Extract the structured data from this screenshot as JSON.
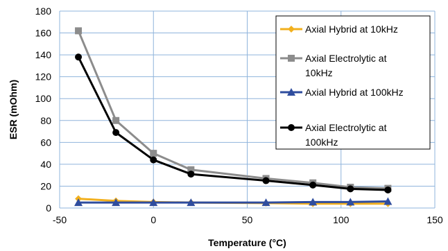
{
  "chart_data": {
    "type": "line",
    "xlabel": "Temperature (°C)",
    "ylabel": "ESR (mOhm)",
    "xlim": [
      -50,
      150
    ],
    "ylim": [
      0,
      180
    ],
    "xticks": [
      -50,
      0,
      50,
      100,
      150
    ],
    "yticks": [
      0,
      20,
      40,
      60,
      80,
      100,
      120,
      140,
      160,
      180
    ],
    "xtick_labels": [
      "-50",
      "0",
      "50",
      "100",
      "150"
    ],
    "ytick_labels": [
      "0",
      "20",
      "40",
      "60",
      "80",
      "100",
      "120",
      "140",
      "160",
      "180"
    ],
    "grid": true,
    "legend_position": "top-right",
    "x": [
      -40,
      -20,
      0,
      20,
      60,
      85,
      105,
      125
    ],
    "series": [
      {
        "name": "Axial Hybrid at 10kHz",
        "legend_lines": [
          "Axial Hybrid at 10kHz"
        ],
        "color": "#F2B01E",
        "marker": "diamond",
        "values": [
          8.5,
          6.5,
          5.5,
          5,
          4.5,
          4,
          4,
          4
        ]
      },
      {
        "name": "Axial Electrolytic at 10kHz",
        "legend_lines": [
          "Axial Electrolytic at",
          "10kHz"
        ],
        "color": "#8C8C8C",
        "marker": "square",
        "values": [
          162,
          80,
          50,
          35,
          27,
          23,
          19,
          18
        ]
      },
      {
        "name": "Axial Hybrid at 100kHz",
        "legend_lines": [
          "Axial Hybrid at 100kHz"
        ],
        "color": "#2F4D9E",
        "marker": "triangle",
        "values": [
          5,
          5,
          5,
          5,
          5,
          5.5,
          5.5,
          6
        ]
      },
      {
        "name": "Axial Electrolytic at 100kHz",
        "legend_lines": [
          "Axial Electrolytic at",
          "100kHz"
        ],
        "color": "#000000",
        "marker": "circle",
        "values": [
          138,
          69,
          44,
          31,
          25,
          21,
          17.5,
          16.5
        ]
      }
    ]
  }
}
